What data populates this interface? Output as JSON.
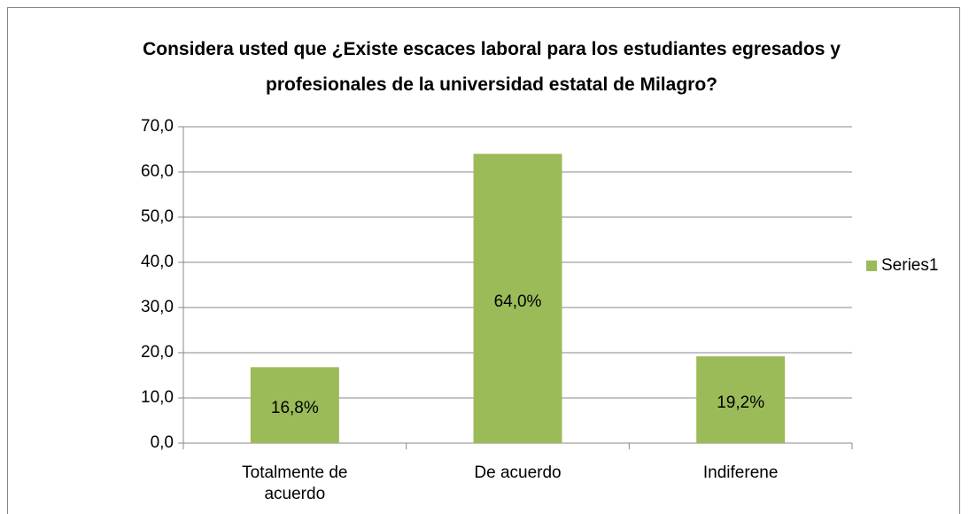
{
  "chart_data": {
    "type": "bar",
    "title": "Considera usted que ¿Existe escaces laboral para los estudiantes egresados y profesionales de la universidad estatal de Milagro?",
    "categories": [
      "Totalmente de acuerdo",
      "De acuerdo",
      "Indiferene"
    ],
    "series": [
      {
        "name": "Series1",
        "color": "#9bbb59",
        "values": [
          16.8,
          64.0,
          19.2
        ],
        "value_labels": [
          "16,8%",
          "64,0%",
          "19,2%"
        ]
      }
    ],
    "ylim": [
      0,
      70
    ],
    "yticks": [
      {
        "value": 0,
        "label": "0,0"
      },
      {
        "value": 10,
        "label": "10,0"
      },
      {
        "value": 20,
        "label": "20,0"
      },
      {
        "value": 30,
        "label": "30,0"
      },
      {
        "value": 40,
        "label": "40,0"
      },
      {
        "value": 50,
        "label": "50,0"
      },
      {
        "value": 60,
        "label": "60,0"
      },
      {
        "value": 70,
        "label": "70,0"
      }
    ],
    "grid": true,
    "legend": "right"
  }
}
